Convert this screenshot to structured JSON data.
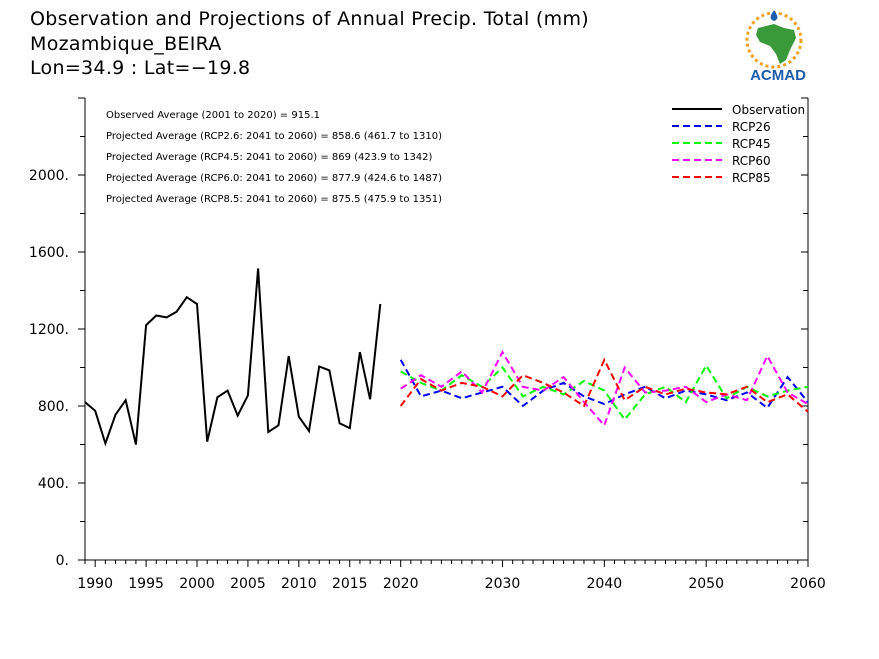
{
  "header": {
    "title": "Observation and Projections of Annual Precip. Total (mm)",
    "location": "Mozambique_BEIRA",
    "coords": "Lon=34.9 : Lat=−19.8"
  },
  "logo": {
    "text": "ACMAD",
    "icon": "africa-map-sun-logo"
  },
  "colors": {
    "observation": "#000000",
    "rcp26": "#0000ff",
    "rcp45": "#00ff00",
    "rcp60": "#ff00ff",
    "rcp85": "#ff0000",
    "logo_blue": "#1b5cab",
    "logo_green": "#3a9a3a",
    "logo_sun": "#f0a020"
  },
  "annotations": [
    "Observed Average (2001 to 2020) = 915.1",
    "Projected Average (RCP2.6: 2041 to 2060) = 858.6 (461.7 to 1310)",
    "Projected Average (RCP4.5: 2041 to 2060) = 869 (423.9 to 1342)",
    "Projected Average (RCP6.0: 2041 to 2060) = 877.9 (424.6 to 1487)",
    "Projected Average (RCP8.5: 2041 to 2060) = 875.5 (475.9 to 1351)"
  ],
  "chart_data": {
    "type": "line",
    "title": "Observation and Projections of Annual Precip. Total (mm)",
    "xlabel": "",
    "ylabel": "",
    "xlim": [
      1989,
      2060
    ],
    "ylim": [
      0,
      2400
    ],
    "x_ticks": [
      {
        "v": 1990,
        "label": "1990"
      },
      {
        "v": 1995,
        "label": "1995"
      },
      {
        "v": 2000,
        "label": "2000"
      },
      {
        "v": 2005,
        "label": "2005"
      },
      {
        "v": 2010,
        "label": "2010"
      },
      {
        "v": 2015,
        "label": "2015"
      },
      {
        "v": 2020,
        "label": "2020"
      },
      {
        "v": 2030,
        "label": "2030"
      },
      {
        "v": 2040,
        "label": "2040"
      },
      {
        "v": 2050,
        "label": "2050"
      },
      {
        "v": 2060,
        "label": "2060"
      }
    ],
    "y_ticks": [
      {
        "v": 0,
        "label": "0."
      },
      {
        "v": 400,
        "label": "400."
      },
      {
        "v": 800,
        "label": "800."
      },
      {
        "v": 1200,
        "label": "1200."
      },
      {
        "v": 1600,
        "label": "1600."
      },
      {
        "v": 2000,
        "label": "2000."
      }
    ],
    "legend_position": "top-right",
    "series": [
      {
        "name": "Observation",
        "key": "observation",
        "dash": "solid",
        "x": [
          1989,
          1990,
          1991,
          1992,
          1993,
          1994,
          1995,
          1996,
          1997,
          1998,
          1999,
          2000,
          2001,
          2002,
          2003,
          2004,
          2005,
          2006,
          2007,
          2008,
          2009,
          2010,
          2011,
          2012,
          2013,
          2014,
          2015,
          2016,
          2017,
          2018,
          2019,
          2020
        ],
        "values": [
          820,
          775,
          605,
          755,
          830,
          600,
          1220,
          1270,
          1260,
          1290,
          1365,
          1330,
          615,
          845,
          880,
          750,
          855,
          1515,
          665,
          700,
          1060,
          745,
          670,
          1005,
          985,
          710,
          685,
          1080,
          835,
          1330,
          null,
          null
        ]
      },
      {
        "name": "RCP26",
        "key": "rcp26",
        "dash": "dashed",
        "x": [
          2020,
          2022,
          2024,
          2026,
          2028,
          2030,
          2032,
          2034,
          2036,
          2038,
          2040,
          2042,
          2044,
          2046,
          2048,
          2050,
          2052,
          2054,
          2056,
          2058,
          2060
        ],
        "values": [
          1040,
          850,
          880,
          840,
          870,
          900,
          800,
          880,
          920,
          850,
          810,
          860,
          900,
          840,
          880,
          860,
          830,
          870,
          790,
          950,
          820
        ]
      },
      {
        "name": "RCP45",
        "key": "rcp45",
        "dash": "dashed",
        "x": [
          2020,
          2022,
          2024,
          2026,
          2028,
          2030,
          2032,
          2034,
          2036,
          2038,
          2040,
          2042,
          2044,
          2046,
          2048,
          2050,
          2052,
          2054,
          2056,
          2058,
          2060
        ],
        "values": [
          980,
          920,
          880,
          960,
          900,
          1000,
          850,
          900,
          860,
          930,
          880,
          730,
          860,
          900,
          820,
          1010,
          840,
          900,
          850,
          880,
          900
        ]
      },
      {
        "name": "RCP60",
        "key": "rcp60",
        "dash": "dashed",
        "x": [
          2020,
          2022,
          2024,
          2026,
          2028,
          2030,
          2032,
          2034,
          2036,
          2038,
          2040,
          2042,
          2044,
          2046,
          2048,
          2050,
          2052,
          2054,
          2056,
          2058,
          2060
        ],
        "values": [
          890,
          960,
          900,
          980,
          870,
          1080,
          900,
          880,
          950,
          820,
          700,
          1000,
          870,
          880,
          900,
          820,
          860,
          830,
          1060,
          870,
          810
        ]
      },
      {
        "name": "RCP85",
        "key": "rcp85",
        "dash": "dashed",
        "x": [
          2020,
          2022,
          2024,
          2026,
          2028,
          2030,
          2032,
          2034,
          2036,
          2038,
          2040,
          2042,
          2044,
          2046,
          2048,
          2050,
          2052,
          2054,
          2056,
          2058,
          2060
        ],
        "values": [
          800,
          940,
          880,
          920,
          900,
          850,
          960,
          920,
          870,
          800,
          1040,
          830,
          900,
          860,
          890,
          870,
          860,
          900,
          820,
          860,
          770
        ]
      }
    ]
  }
}
